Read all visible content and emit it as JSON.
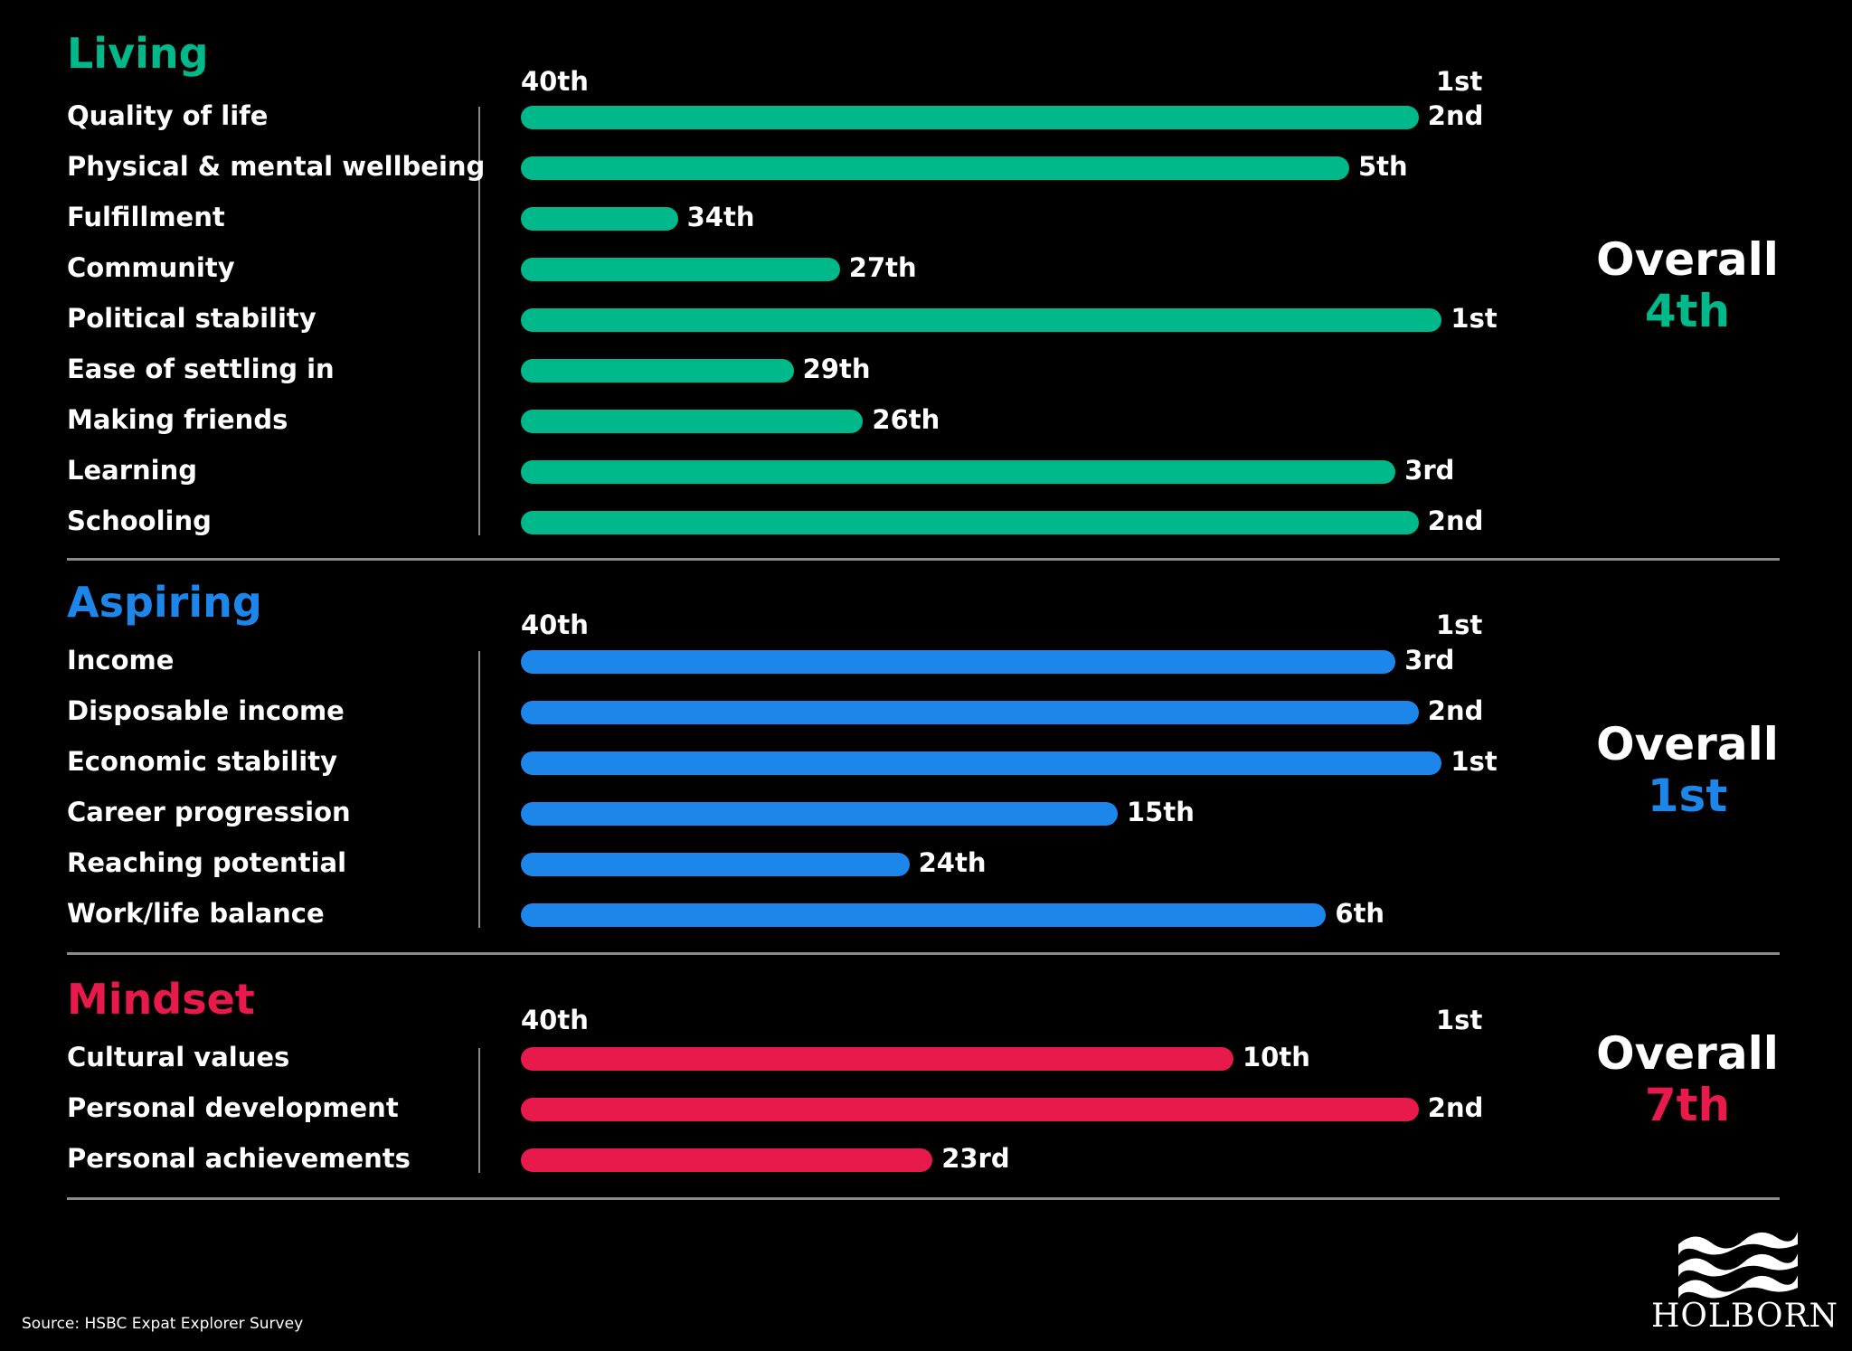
{
  "colors": {
    "Living": "#00b98a",
    "Aspiring": "#1d86ea",
    "Mindset": "#e8194b",
    "divider": "#8a8a8a",
    "background": "#000000"
  },
  "axis": {
    "left": "40th",
    "right": "1st"
  },
  "overall_label": "Overall",
  "chart_data": {
    "type": "bar",
    "orientation": "horizontal",
    "axis_range": [
      40,
      1
    ],
    "axis_labels": [
      "40th",
      "1st"
    ],
    "panels": [
      {
        "title": "Living",
        "overall": "4th",
        "categories": [
          "Quality of life",
          "Physical & mental wellbeing",
          "Fulfillment",
          "Community",
          "Political stability",
          "Ease of settling in",
          "Making friends",
          "Learning",
          "Schooling"
        ],
        "values": [
          2,
          5,
          34,
          27,
          1,
          29,
          26,
          3,
          2
        ],
        "labels": [
          "2nd",
          "5th",
          "34th",
          "27th",
          "1st",
          "29th",
          "26th",
          "3rd",
          "2nd"
        ]
      },
      {
        "title": "Aspiring",
        "overall": "1st",
        "categories": [
          "Income",
          "Disposable income",
          "Economic stability",
          "Career progression",
          "Reaching potential",
          "Work/life balance"
        ],
        "values": [
          3,
          2,
          1,
          15,
          24,
          6
        ],
        "labels": [
          "3rd",
          "2nd",
          "1st",
          "15th",
          "24th",
          "6th"
        ]
      },
      {
        "title": "Mindset",
        "overall": "7th",
        "categories": [
          "Cultural values",
          "Personal development",
          "Personal achievements"
        ],
        "values": [
          10,
          2,
          23
        ],
        "labels": [
          "10th",
          "2nd",
          "23rd"
        ]
      }
    ]
  },
  "footer": {
    "source": "Source: HSBC Expat Explorer Survey",
    "brand": "HOLBORN"
  }
}
